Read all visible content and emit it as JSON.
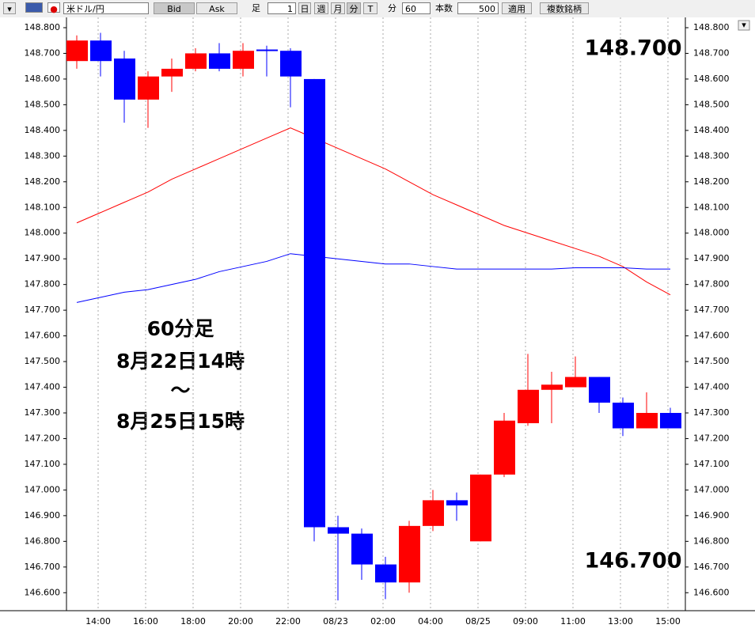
{
  "toolbar": {
    "symbol": "米ドル/円",
    "bid": "Bid",
    "ask": "Ask",
    "ashi": "足",
    "interval": "1",
    "day": "日",
    "week": "週",
    "month": "月",
    "minute": "分",
    "tick": "T",
    "minute_label": "分",
    "minutes": "60",
    "count_label": "本数",
    "count": "500",
    "apply": "適用",
    "multi": "複数銘柄"
  },
  "chart_data": {
    "type": "candlestick",
    "annotations": [
      "60分足",
      "8月22日14時",
      "〜",
      "8月25日15時",
      "148.700",
      "146.700"
    ],
    "categories": [
      null,
      "14:00",
      null,
      "16:00",
      null,
      "18:00",
      null,
      "20:00",
      null,
      "22:00",
      null,
      "08/23",
      null,
      "02:00",
      null,
      "04:00",
      null,
      "08/25",
      null,
      "09:00",
      null,
      "11:00",
      null,
      "13:00",
      null,
      "15:00"
    ],
    "open": [
      148.67,
      148.75,
      148.68,
      148.52,
      148.61,
      148.64,
      148.7,
      148.64,
      148.715,
      148.71,
      148.6,
      146.855,
      146.83,
      146.71,
      146.64,
      146.86,
      146.96,
      146.8,
      147.06,
      147.26,
      147.39,
      147.4,
      147.44,
      147.34,
      147.24,
      147.3
    ],
    "high": [
      148.77,
      148.78,
      148.71,
      148.63,
      148.68,
      148.72,
      148.74,
      148.74,
      148.73,
      148.72,
      148.6,
      146.9,
      146.85,
      146.74,
      146.88,
      147.0,
      146.99,
      147.06,
      147.3,
      147.53,
      147.46,
      147.52,
      147.44,
      147.36,
      147.38,
      147.32
    ],
    "low": [
      148.64,
      148.61,
      148.43,
      148.41,
      148.55,
      148.63,
      148.63,
      148.61,
      148.61,
      148.49,
      146.8,
      146.57,
      146.65,
      146.575,
      146.6,
      146.84,
      146.88,
      146.8,
      147.05,
      147.25,
      147.26,
      147.4,
      147.3,
      147.21,
      147.24,
      147.24
    ],
    "close": [
      148.75,
      148.67,
      148.52,
      148.61,
      148.64,
      148.7,
      148.64,
      148.71,
      148.71,
      148.61,
      146.855,
      146.83,
      146.71,
      146.64,
      146.86,
      146.96,
      146.94,
      147.06,
      147.27,
      147.39,
      147.41,
      147.44,
      147.34,
      147.24,
      147.3,
      147.24
    ],
    "up_color": "#ff0000",
    "down_color": "#0000ff",
    "moving_averages": [
      {
        "color": "#ff0000",
        "values": [
          148.04,
          148.08,
          148.12,
          148.16,
          148.21,
          148.25,
          148.29,
          148.33,
          148.37,
          148.41,
          148.37,
          148.33,
          148.29,
          148.25,
          148.2,
          148.15,
          148.11,
          148.07,
          148.03,
          148.0,
          147.97,
          147.94,
          147.91,
          147.87,
          147.81,
          147.76
        ]
      },
      {
        "color": "#0000ff",
        "values": [
          147.73,
          147.75,
          147.77,
          147.78,
          147.8,
          147.82,
          147.85,
          147.87,
          147.89,
          147.92,
          147.91,
          147.9,
          147.89,
          147.88,
          147.88,
          147.87,
          147.86,
          147.86,
          147.86,
          147.86,
          147.86,
          147.865,
          147.865,
          147.865,
          147.86,
          147.86
        ]
      }
    ],
    "ylim": [
      146.53,
      148.84
    ],
    "yticks": [
      {
        "value": 146.6,
        "label": "146.600"
      },
      {
        "value": 146.7,
        "label": "146.700"
      },
      {
        "value": 146.8,
        "label": "146.800"
      },
      {
        "value": 146.9,
        "label": "146.900"
      },
      {
        "value": 147.0,
        "label": "147.000"
      },
      {
        "value": 147.1,
        "label": "147.100"
      },
      {
        "value": 147.2,
        "label": "147.200"
      },
      {
        "value": 147.3,
        "label": "147.300"
      },
      {
        "value": 147.4,
        "label": "147.400"
      },
      {
        "value": 147.5,
        "label": "147.500"
      },
      {
        "value": 147.6,
        "label": "147.600"
      },
      {
        "value": 147.7,
        "label": "147.700"
      },
      {
        "value": 147.8,
        "label": "147.800"
      },
      {
        "value": 147.9,
        "label": "147.900"
      },
      {
        "value": 148.0,
        "label": "148.000"
      },
      {
        "value": 148.1,
        "label": "148.100"
      },
      {
        "value": 148.2,
        "label": "148.200"
      },
      {
        "value": 148.3,
        "label": "148.300"
      },
      {
        "value": 148.4,
        "label": "148.400"
      },
      {
        "value": 148.5,
        "label": "148.500"
      },
      {
        "value": 148.6,
        "label": "148.600"
      },
      {
        "value": 148.7,
        "label": "148.700"
      },
      {
        "value": 148.8,
        "label": "148.800"
      }
    ]
  }
}
